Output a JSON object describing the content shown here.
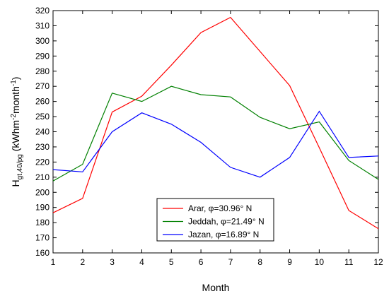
{
  "chart_data": {
    "type": "line",
    "title": "",
    "xlabel": "Month",
    "ylabel": {
      "main": "H",
      "subscript": "gt,40/pg",
      "unit_open": " (kWhm",
      "unit_exp1": "-2",
      "unit_mid": "month",
      "unit_exp2": "-1",
      "unit_close": ")"
    },
    "x": [
      1,
      2,
      3,
      4,
      5,
      6,
      7,
      8,
      9,
      10,
      11,
      12
    ],
    "xlim": [
      1,
      12
    ],
    "ylim": [
      160,
      320
    ],
    "yticks": [
      160,
      170,
      180,
      190,
      200,
      210,
      220,
      230,
      240,
      250,
      260,
      270,
      280,
      290,
      300,
      310,
      320
    ],
    "grid": false,
    "legend_position": "bottom-center",
    "series": [
      {
        "name": "Arar, φ=30.96° N",
        "color": "#ff0000",
        "values": [
          186.5,
          196,
          253,
          263.5,
          284,
          305.5,
          315.5,
          293,
          270.5,
          229.5,
          188,
          176
        ]
      },
      {
        "name": "Jeddah, φ=21.49° N",
        "color": "#008000",
        "values": [
          207.5,
          218.5,
          265.5,
          260,
          270,
          264.5,
          263,
          249.5,
          242,
          246.5,
          221,
          208.5
        ]
      },
      {
        "name": "Jazan, φ=16.89° N",
        "color": "#0000ff",
        "values": [
          215,
          213.5,
          240,
          252.5,
          245,
          233,
          216.5,
          210,
          223,
          253.5,
          223,
          224
        ]
      }
    ]
  }
}
